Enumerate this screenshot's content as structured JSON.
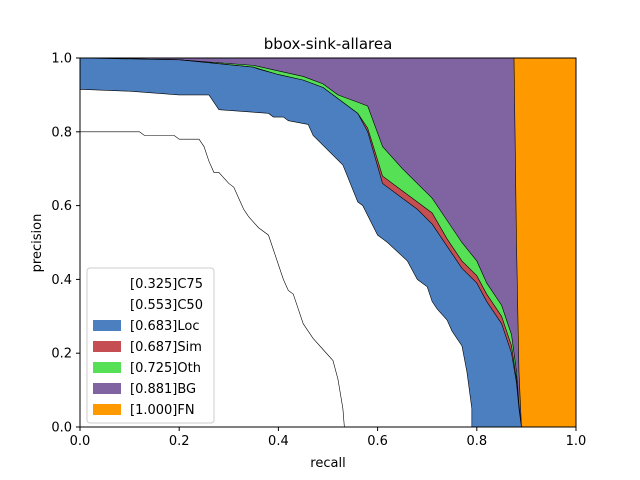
{
  "chart_data": {
    "type": "area",
    "title": "bbox-sink-allarea",
    "xlabel": "recall",
    "ylabel": "precision",
    "xlim": [
      0,
      1
    ],
    "ylim": [
      0,
      1
    ],
    "x_ticks": [
      "0.0",
      "0.2",
      "0.4",
      "0.6",
      "0.8",
      "1.0"
    ],
    "y_ticks": [
      "0.0",
      "0.2",
      "0.4",
      "0.6",
      "0.8",
      "1.0"
    ],
    "grid": false,
    "legend_position": "lower-left",
    "series": [
      {
        "name": "[0.325]C75",
        "color": "#ffffff",
        "x": [
          0.0,
          0.12,
          0.13,
          0.19,
          0.2,
          0.24,
          0.25,
          0.26,
          0.27,
          0.28,
          0.3,
          0.31,
          0.32,
          0.33,
          0.34,
          0.36,
          0.38,
          0.39,
          0.4,
          0.41,
          0.42,
          0.43,
          0.44,
          0.45,
          0.47,
          0.49,
          0.51,
          0.52,
          0.53,
          0.533
        ],
        "y": [
          0.8,
          0.8,
          0.79,
          0.79,
          0.78,
          0.78,
          0.76,
          0.72,
          0.69,
          0.69,
          0.66,
          0.65,
          0.62,
          0.59,
          0.57,
          0.54,
          0.52,
          0.48,
          0.44,
          0.4,
          0.37,
          0.36,
          0.32,
          0.28,
          0.24,
          0.21,
          0.18,
          0.13,
          0.05,
          0.0
        ]
      },
      {
        "name": "[0.553]C50",
        "color": "#ffffff",
        "x": [
          0.0,
          0.1,
          0.2,
          0.26,
          0.27,
          0.28,
          0.38,
          0.39,
          0.41,
          0.42,
          0.46,
          0.47,
          0.53,
          0.56,
          0.57,
          0.6,
          0.62,
          0.66,
          0.68,
          0.7,
          0.71,
          0.72,
          0.74,
          0.75,
          0.77,
          0.78,
          0.79,
          0.79
        ],
        "y": [
          0.915,
          0.91,
          0.9,
          0.9,
          0.88,
          0.86,
          0.85,
          0.84,
          0.84,
          0.83,
          0.82,
          0.79,
          0.71,
          0.61,
          0.6,
          0.52,
          0.5,
          0.45,
          0.4,
          0.38,
          0.34,
          0.32,
          0.29,
          0.26,
          0.22,
          0.15,
          0.05,
          0.0
        ]
      },
      {
        "name": "[0.683]Loc",
        "color": "#4c7fbf",
        "x": [
          0.0,
          0.2,
          0.35,
          0.36,
          0.4,
          0.45,
          0.49,
          0.52,
          0.56,
          0.58,
          0.61,
          0.65,
          0.68,
          0.71,
          0.74,
          0.77,
          0.8,
          0.82,
          0.85,
          0.87,
          0.88,
          0.885,
          0.89
        ],
        "y": [
          1.0,
          0.995,
          0.975,
          0.97,
          0.955,
          0.94,
          0.92,
          0.89,
          0.85,
          0.8,
          0.66,
          0.62,
          0.59,
          0.55,
          0.49,
          0.43,
          0.39,
          0.34,
          0.28,
          0.2,
          0.12,
          0.05,
          0.0
        ]
      },
      {
        "name": "[0.687]Sim",
        "color": "#c44e52",
        "x": [
          0.0,
          0.2,
          0.35,
          0.4,
          0.45,
          0.49,
          0.52,
          0.56,
          0.58,
          0.61,
          0.65,
          0.68,
          0.71,
          0.74,
          0.77,
          0.8,
          0.82,
          0.85,
          0.87,
          0.88,
          0.885,
          0.89
        ],
        "y": [
          1.0,
          0.995,
          0.975,
          0.955,
          0.94,
          0.92,
          0.89,
          0.85,
          0.81,
          0.68,
          0.64,
          0.61,
          0.58,
          0.51,
          0.45,
          0.41,
          0.36,
          0.3,
          0.22,
          0.13,
          0.05,
          0.0
        ]
      },
      {
        "name": "[0.725]Oth",
        "color": "#55e055",
        "x": [
          0.0,
          0.2,
          0.35,
          0.4,
          0.45,
          0.49,
          0.52,
          0.56,
          0.58,
          0.61,
          0.65,
          0.68,
          0.71,
          0.74,
          0.77,
          0.8,
          0.82,
          0.85,
          0.87,
          0.88,
          0.885,
          0.89
        ],
        "y": [
          1.0,
          0.995,
          0.98,
          0.965,
          0.95,
          0.93,
          0.9,
          0.88,
          0.87,
          0.76,
          0.7,
          0.66,
          0.62,
          0.56,
          0.5,
          0.45,
          0.39,
          0.33,
          0.25,
          0.15,
          0.06,
          0.0
        ]
      },
      {
        "name": "[0.881]BG",
        "color": "#8064a2",
        "x": [
          0.0,
          0.87,
          0.875,
          0.88,
          0.885,
          0.89
        ],
        "y": [
          1.0,
          1.0,
          1.0,
          0.5,
          0.15,
          0.0
        ]
      },
      {
        "name": "[1.000]FN",
        "color": "#ff9900",
        "x": [
          0.0,
          1.0
        ],
        "y": [
          1.0,
          1.0
        ]
      }
    ]
  }
}
